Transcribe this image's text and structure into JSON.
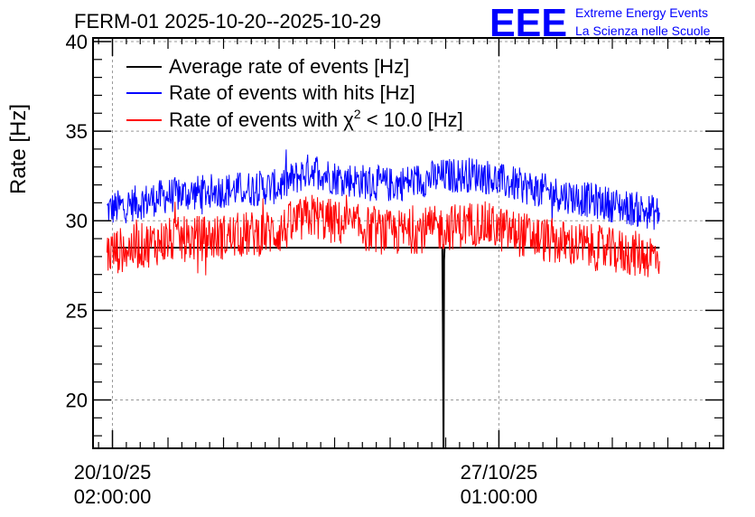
{
  "chart_data": {
    "type": "line",
    "title": "FERM-01 2025-10-20--2025-10-29",
    "ylabel": "Rate [Hz]",
    "xlabel": "",
    "ylim": [
      17.3,
      40.2
    ],
    "yticks": [
      20,
      25,
      30,
      35,
      40
    ],
    "xlim_days": [
      -0.35,
      11.0
    ],
    "x_ticks": [
      {
        "day": 0.0,
        "line1": "20/10/25",
        "line2": "02:00:00"
      },
      {
        "day": 6.958,
        "line1": "27/10/25",
        "line2": "01:00:00"
      }
    ],
    "grid": true,
    "legend_position": "top-left",
    "series": [
      {
        "name": "Average rate of events [Hz]",
        "color": "#000000",
        "x_days": [
          0.0,
          5.94,
          5.95,
          5.96,
          5.97,
          5.98,
          9.85
        ],
        "values": [
          28.5,
          28.5,
          24.3,
          17.3,
          27.8,
          28.5,
          28.5
        ],
        "gaps": [
          [
            5.955,
            5.975
          ]
        ]
      },
      {
        "name": "Rate of events with hits [Hz]",
        "color": "#0000ff",
        "x_days": [
          -0.1,
          1.0,
          2.0,
          3.0,
          3.6,
          4.0,
          5.0,
          6.0,
          6.6,
          7.0,
          8.0,
          8.5,
          9.0,
          9.85
        ],
        "values": [
          30.6,
          31.4,
          31.7,
          31.9,
          32.9,
          32.4,
          32.0,
          32.5,
          32.6,
          32.2,
          31.5,
          31.2,
          30.9,
          30.4
        ],
        "band_halfwidth": 1.0
      },
      {
        "name": "Rate of events with χ² < 10.0 [Hz]",
        "legend_prefix": "Rate of events with ",
        "legend_chi": "χ",
        "legend_sup": "2",
        "legend_suffix": " < 10.0 [Hz]",
        "color": "#ff0000",
        "x_days": [
          -0.1,
          1.0,
          2.0,
          3.0,
          3.6,
          4.0,
          5.0,
          6.0,
          6.6,
          7.0,
          8.0,
          8.5,
          9.0,
          9.85
        ],
        "values": [
          28.2,
          28.9,
          29.1,
          29.4,
          30.3,
          29.9,
          29.3,
          29.6,
          29.9,
          29.5,
          28.8,
          28.6,
          28.3,
          28.0
        ],
        "band_halfwidth": 1.3
      }
    ]
  },
  "logo": {
    "big": "EEE",
    "line1": "Extreme Energy Events",
    "line2": "La Scienza nelle Scuole"
  }
}
